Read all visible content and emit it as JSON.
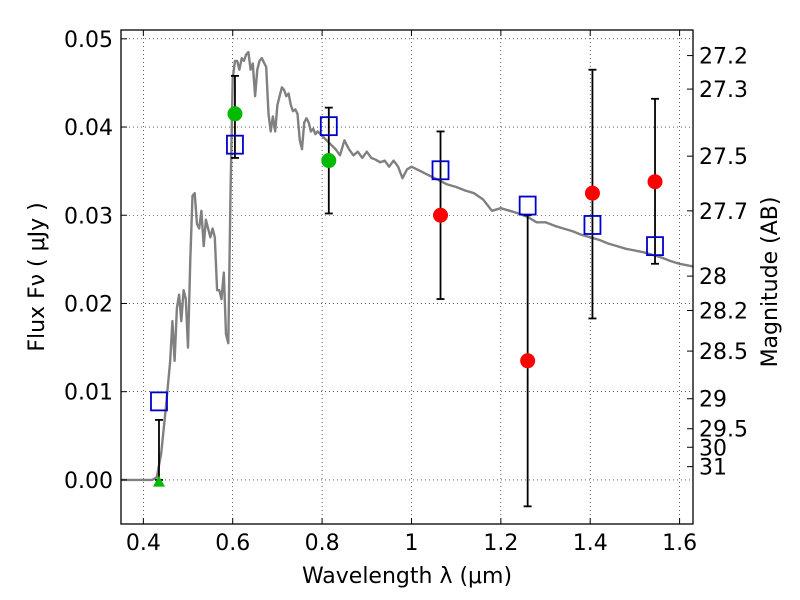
{
  "chart_data": {
    "type": "scatter",
    "xlabel": "Wavelength  λ (μm)",
    "ylabel": "Flux  Fν  ( μJy )",
    "ylabel_right": "Magnitude (AB)",
    "xlim": [
      0.35,
      1.63
    ],
    "ylim": [
      -0.005,
      0.051
    ],
    "x_ticks": [
      0.4,
      0.6,
      0.8,
      1.0,
      1.2,
      1.4,
      1.6
    ],
    "x_tick_labels": [
      "0.4",
      "0.6",
      "0.8",
      "1",
      "1.2",
      "1.4",
      "1.6"
    ],
    "y_ticks": [
      0.0,
      0.01,
      0.02,
      0.03,
      0.04,
      0.05
    ],
    "y_tick_labels": [
      "0.00",
      "0.01",
      "0.02",
      "0.03",
      "0.04",
      "0.05"
    ],
    "right_ticks": [
      {
        "label": "27.2",
        "flux": 0.0481
      },
      {
        "label": "27.3",
        "flux": 0.0443
      },
      {
        "label": "27.5",
        "flux": 0.0367
      },
      {
        "label": "27.7",
        "flux": 0.0305
      },
      {
        "label": "28",
        "flux": 0.0231
      },
      {
        "label": "28.2",
        "flux": 0.0192
      },
      {
        "label": "28.5",
        "flux": 0.0146
      },
      {
        "label": "29",
        "flux": 0.0092
      },
      {
        "label": "29.5",
        "flux": 0.0058
      },
      {
        "label": "30",
        "flux": 0.0037
      },
      {
        "label": "31",
        "flux": 0.0015
      }
    ],
    "grid": true,
    "colors": {
      "model": "#808080",
      "observed": "#ff0000",
      "observed_alt": "#00bb00",
      "model_photometry": "#0000cc",
      "errorbar": "#000000"
    },
    "series": [
      {
        "kind": "line",
        "points": [
          [
            0.35,
            0.0
          ],
          [
            0.42,
            0.0
          ],
          [
            0.43,
            0.0003
          ],
          [
            0.44,
            0.003
          ],
          [
            0.45,
            0.008
          ],
          [
            0.46,
            0.0135
          ],
          [
            0.465,
            0.018
          ],
          [
            0.47,
            0.0135
          ],
          [
            0.475,
            0.0195
          ],
          [
            0.48,
            0.021
          ],
          [
            0.485,
            0.018
          ],
          [
            0.49,
            0.0215
          ],
          [
            0.495,
            0.0205
          ],
          [
            0.5,
            0.015
          ],
          [
            0.505,
            0.025
          ],
          [
            0.51,
            0.0322
          ],
          [
            0.515,
            0.0325
          ],
          [
            0.52,
            0.029
          ],
          [
            0.525,
            0.0285
          ],
          [
            0.53,
            0.0305
          ],
          [
            0.535,
            0.0265
          ],
          [
            0.54,
            0.0295
          ],
          [
            0.545,
            0.0285
          ],
          [
            0.55,
            0.0275
          ],
          [
            0.555,
            0.0285
          ],
          [
            0.56,
            0.0275
          ],
          [
            0.565,
            0.0215
          ],
          [
            0.57,
            0.0215
          ],
          [
            0.575,
            0.0205
          ],
          [
            0.58,
            0.0235
          ],
          [
            0.585,
            0.0165
          ],
          [
            0.59,
            0.0155
          ],
          [
            0.595,
            0.0325
          ],
          [
            0.6,
            0.0455
          ],
          [
            0.605,
            0.0475
          ],
          [
            0.61,
            0.0475
          ],
          [
            0.615,
            0.0465
          ],
          [
            0.62,
            0.0478
          ],
          [
            0.625,
            0.0475
          ],
          [
            0.63,
            0.0482
          ],
          [
            0.635,
            0.0485
          ],
          [
            0.64,
            0.0465
          ],
          [
            0.645,
            0.0472
          ],
          [
            0.65,
            0.0435
          ],
          [
            0.655,
            0.0465
          ],
          [
            0.66,
            0.0475
          ],
          [
            0.665,
            0.0478
          ],
          [
            0.67,
            0.0473
          ],
          [
            0.675,
            0.0468
          ],
          [
            0.68,
            0.0415
          ],
          [
            0.685,
            0.0395
          ],
          [
            0.69,
            0.0412
          ],
          [
            0.695,
            0.0395
          ],
          [
            0.7,
            0.0425
          ],
          [
            0.705,
            0.0435
          ],
          [
            0.71,
            0.0445
          ],
          [
            0.715,
            0.0442
          ],
          [
            0.72,
            0.0435
          ],
          [
            0.725,
            0.0438
          ],
          [
            0.73,
            0.0425
          ],
          [
            0.735,
            0.0418
          ],
          [
            0.74,
            0.042
          ],
          [
            0.745,
            0.0415
          ],
          [
            0.75,
            0.0385
          ],
          [
            0.755,
            0.0375
          ],
          [
            0.76,
            0.0405
          ],
          [
            0.765,
            0.041
          ],
          [
            0.77,
            0.0405
          ],
          [
            0.775,
            0.0395
          ],
          [
            0.78,
            0.0398
          ],
          [
            0.785,
            0.0392
          ],
          [
            0.79,
            0.0395
          ],
          [
            0.8,
            0.039
          ],
          [
            0.81,
            0.0385
          ],
          [
            0.82,
            0.038
          ],
          [
            0.83,
            0.0375
          ],
          [
            0.84,
            0.0368
          ],
          [
            0.85,
            0.0385
          ],
          [
            0.86,
            0.0375
          ],
          [
            0.87,
            0.0368
          ],
          [
            0.88,
            0.0372
          ],
          [
            0.89,
            0.0365
          ],
          [
            0.9,
            0.0372
          ],
          [
            0.91,
            0.0365
          ],
          [
            0.92,
            0.0363
          ],
          [
            0.93,
            0.036
          ],
          [
            0.94,
            0.0362
          ],
          [
            0.95,
            0.0355
          ],
          [
            0.96,
            0.0362
          ],
          [
            0.97,
            0.0355
          ],
          [
            0.98,
            0.0342
          ],
          [
            0.99,
            0.0352
          ],
          [
            1.0,
            0.0355
          ],
          [
            1.02,
            0.035
          ],
          [
            1.04,
            0.0345
          ],
          [
            1.06,
            0.034
          ],
          [
            1.08,
            0.0335
          ],
          [
            1.1,
            0.0332
          ],
          [
            1.12,
            0.0328
          ],
          [
            1.14,
            0.0325
          ],
          [
            1.16,
            0.0318
          ],
          [
            1.18,
            0.0305
          ],
          [
            1.2,
            0.0308
          ],
          [
            1.22,
            0.0305
          ],
          [
            1.24,
            0.0302
          ],
          [
            1.26,
            0.0298
          ],
          [
            1.28,
            0.0292
          ],
          [
            1.3,
            0.0292
          ],
          [
            1.32,
            0.0288
          ],
          [
            1.34,
            0.0285
          ],
          [
            1.36,
            0.0282
          ],
          [
            1.38,
            0.0278
          ],
          [
            1.4,
            0.0275
          ],
          [
            1.42,
            0.0272
          ],
          [
            1.44,
            0.0268
          ],
          [
            1.46,
            0.0265
          ],
          [
            1.48,
            0.0262
          ],
          [
            1.5,
            0.026
          ],
          [
            1.52,
            0.0258
          ],
          [
            1.54,
            0.0255
          ],
          [
            1.56,
            0.0252
          ],
          [
            1.58,
            0.0248
          ],
          [
            1.6,
            0.0245
          ],
          [
            1.63,
            0.0242
          ]
        ]
      },
      {
        "kind": "errorbars",
        "points": [
          {
            "x": 0.435,
            "y": 0.0027,
            "lo": 0.0,
            "hi": 0.0068
          },
          {
            "x": 0.605,
            "y": 0.0415,
            "lo": 0.0365,
            "hi": 0.0458
          },
          {
            "x": 0.815,
            "y": 0.0362,
            "lo": 0.0302,
            "hi": 0.0422
          },
          {
            "x": 1.065,
            "y": 0.03,
            "lo": 0.0205,
            "hi": 0.0395
          },
          {
            "x": 1.26,
            "y": 0.0135,
            "lo": -0.003,
            "hi": 0.03
          },
          {
            "x": 1.405,
            "y": 0.0325,
            "lo": 0.0183,
            "hi": 0.0465
          },
          {
            "x": 1.545,
            "y": 0.0338,
            "lo": 0.0245,
            "hi": 0.0432
          }
        ]
      },
      {
        "kind": "squares",
        "points": [
          [
            0.435,
            0.0089
          ],
          [
            0.605,
            0.038
          ],
          [
            0.815,
            0.0401
          ],
          [
            1.065,
            0.0351
          ],
          [
            1.26,
            0.0311
          ],
          [
            1.405,
            0.0289
          ],
          [
            1.545,
            0.0265
          ]
        ]
      },
      {
        "kind": "circles",
        "color": "observed_alt",
        "points": [
          [
            0.605,
            0.0415
          ],
          [
            0.815,
            0.0362
          ]
        ]
      },
      {
        "kind": "circles",
        "color": "observed",
        "points": [
          [
            1.065,
            0.03
          ],
          [
            1.26,
            0.0135
          ],
          [
            1.405,
            0.0325
          ],
          [
            1.545,
            0.0338
          ]
        ]
      },
      {
        "kind": "triangle",
        "color": "observed_alt",
        "points": [
          [
            0.435,
            -0.0002
          ]
        ]
      }
    ]
  }
}
